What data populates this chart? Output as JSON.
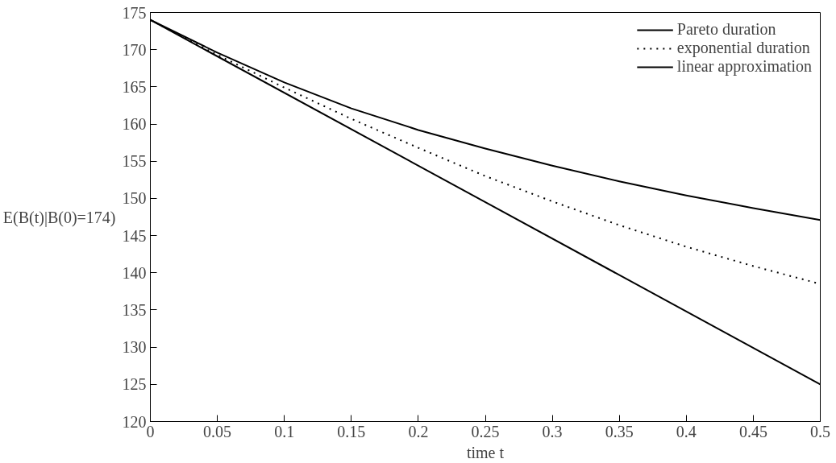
{
  "chart_data": {
    "type": "line",
    "xlabel": "time t",
    "ylabel": "E(B(t)|B(0)=174)",
    "x": [
      0,
      0.05,
      0.1,
      0.15,
      0.2,
      0.25,
      0.3,
      0.35,
      0.4,
      0.45,
      0.5
    ],
    "series": [
      {
        "name": "Pareto duration",
        "color": "#000000",
        "line_style": "solid",
        "values": [
          174,
          169.6,
          165.6,
          162.1,
          159.2,
          156.7,
          154.4,
          152.3,
          150.4,
          148.7,
          147.1
        ]
      },
      {
        "name": "exponential duration",
        "color": "#000000",
        "line_style": "dotted",
        "values": [
          174,
          169.3,
          164.9,
          160.7,
          156.8,
          153.0,
          149.6,
          146.4,
          143.5,
          140.9,
          138.5
        ]
      },
      {
        "name": "linear approximation",
        "color": "#000000",
        "line_style": "solid",
        "x": [
          0,
          0.5
        ],
        "values": [
          174,
          125
        ]
      }
    ],
    "xlim": [
      0,
      0.5
    ],
    "ylim": [
      120,
      175
    ],
    "xticks": [
      0,
      0.05,
      0.1,
      0.15,
      0.2,
      0.25,
      0.3,
      0.35,
      0.4,
      0.45,
      0.5
    ],
    "yticks": [
      120,
      125,
      130,
      135,
      140,
      145,
      150,
      155,
      160,
      165,
      170,
      175
    ],
    "grid": false,
    "legend": "top right",
    "marker": "none"
  }
}
